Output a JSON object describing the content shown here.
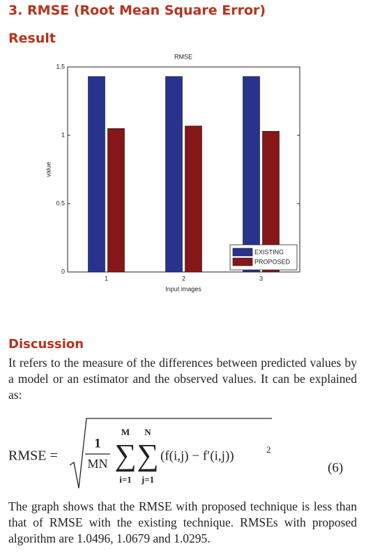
{
  "section_title": "3. RMSE (Root Mean Square Error)",
  "result_heading": "Result",
  "chart_data": {
    "type": "bar",
    "title": "RMSE",
    "xlabel": "Input images",
    "ylabel": "value",
    "categories": [
      "1",
      "2",
      "3"
    ],
    "series": [
      {
        "name": "EXISTING",
        "color": "#27338c",
        "values": [
          1.43,
          1.43,
          1.43
        ]
      },
      {
        "name": "PROPOSED",
        "color": "#861618",
        "values": [
          1.0496,
          1.0679,
          1.0295
        ]
      }
    ],
    "ylim": [
      0,
      1.5
    ],
    "yticks": [
      0,
      0.5,
      1,
      1.5
    ],
    "grid": false,
    "legend": "lower right"
  },
  "discussion_heading": "Discussion",
  "discussion_text": "It refers to the measure of the differences between predicted values by a model or an estimator and the observed values. It can be explained as:",
  "equation": {
    "lhs": "RMSE =",
    "numerator": "1",
    "denominator": "MN",
    "sum_symbol": "∑",
    "upper1": "M",
    "lower1": "i=1",
    "upper2": "N",
    "lower2": "j=1",
    "body": "(f(i,j) − f′(i,j))",
    "exponent": "2",
    "number": "(6)"
  },
  "conclusion_text": "The graph shows that the RMSE with proposed technique is less than that of RMSE with the existing technique. RMSEs with proposed algorithm are 1.0496, 1.0679 and 1.0295."
}
